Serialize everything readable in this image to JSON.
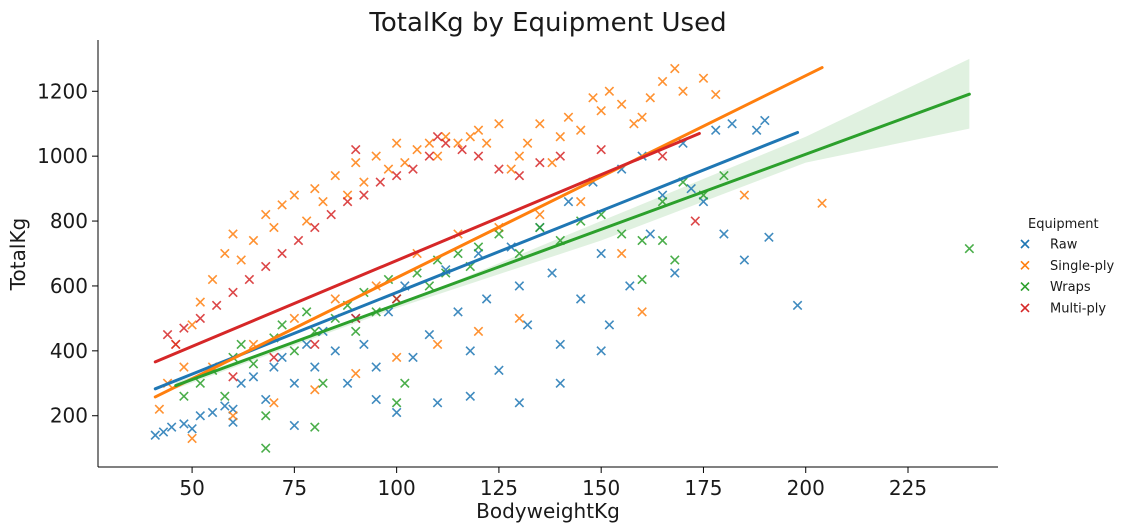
{
  "chart_data": {
    "type": "scatter",
    "title": "TotalKg by Equipment Used",
    "xlabel": "BodyweightKg",
    "ylabel": "TotalKg",
    "xlim": [
      27,
      247
    ],
    "ylim": [
      42,
      1358
    ],
    "x_ticks": [
      50,
      75,
      100,
      125,
      150,
      175,
      200,
      225
    ],
    "y_ticks": [
      200,
      400,
      600,
      800,
      1000,
      1200
    ],
    "grid": false,
    "legend": {
      "title": "Equipment",
      "placement": "right"
    },
    "series": [
      {
        "name": "Raw",
        "color": "#1f77b4",
        "marker": "x",
        "trend": {
          "x": [
            41,
            198
          ],
          "y": [
            283,
            1073
          ]
        },
        "points": [
          [
            41,
            140
          ],
          [
            43,
            150
          ],
          [
            45,
            165
          ],
          [
            48,
            175
          ],
          [
            50,
            160
          ],
          [
            52,
            200
          ],
          [
            55,
            210
          ],
          [
            58,
            230
          ],
          [
            60,
            180
          ],
          [
            62,
            300
          ],
          [
            65,
            320
          ],
          [
            68,
            250
          ],
          [
            70,
            350
          ],
          [
            72,
            380
          ],
          [
            75,
            300
          ],
          [
            78,
            420
          ],
          [
            80,
            350
          ],
          [
            82,
            460
          ],
          [
            85,
            400
          ],
          [
            88,
            300
          ],
          [
            90,
            500
          ],
          [
            92,
            420
          ],
          [
            95,
            250
          ],
          [
            98,
            520
          ],
          [
            100,
            210
          ],
          [
            102,
            600
          ],
          [
            104,
            380
          ],
          [
            108,
            450
          ],
          [
            110,
            240
          ],
          [
            112,
            650
          ],
          [
            115,
            520
          ],
          [
            118,
            400
          ],
          [
            120,
            700
          ],
          [
            122,
            560
          ],
          [
            125,
            340
          ],
          [
            128,
            720
          ],
          [
            130,
            600
          ],
          [
            132,
            480
          ],
          [
            135,
            780
          ],
          [
            138,
            640
          ],
          [
            140,
            420
          ],
          [
            142,
            860
          ],
          [
            145,
            560
          ],
          [
            148,
            920
          ],
          [
            150,
            700
          ],
          [
            152,
            480
          ],
          [
            155,
            960
          ],
          [
            157,
            600
          ],
          [
            160,
            1000
          ],
          [
            162,
            760
          ],
          [
            165,
            880
          ],
          [
            168,
            640
          ],
          [
            170,
            1040
          ],
          [
            172,
            900
          ],
          [
            175,
            860
          ],
          [
            178,
            1080
          ],
          [
            180,
            760
          ],
          [
            182,
            1100
          ],
          [
            185,
            680
          ],
          [
            188,
            1080
          ],
          [
            190,
            1110
          ],
          [
            191,
            750
          ],
          [
            198,
            540
          ],
          [
            130,
            240
          ],
          [
            140,
            300
          ],
          [
            150,
            400
          ],
          [
            60,
            220
          ],
          [
            75,
            170
          ],
          [
            95,
            350
          ],
          [
            118,
            260
          ]
        ]
      },
      {
        "name": "Single-ply",
        "color": "#ff7f0e",
        "marker": "x",
        "trend": {
          "x": [
            41,
            204
          ],
          "y": [
            258,
            1273
          ]
        },
        "points": [
          [
            42,
            220
          ],
          [
            44,
            300
          ],
          [
            46,
            420
          ],
          [
            48,
            350
          ],
          [
            50,
            480
          ],
          [
            52,
            550
          ],
          [
            55,
            620
          ],
          [
            58,
            700
          ],
          [
            60,
            760
          ],
          [
            62,
            680
          ],
          [
            65,
            740
          ],
          [
            68,
            820
          ],
          [
            70,
            780
          ],
          [
            72,
            850
          ],
          [
            75,
            880
          ],
          [
            78,
            800
          ],
          [
            80,
            900
          ],
          [
            82,
            860
          ],
          [
            85,
            940
          ],
          [
            88,
            880
          ],
          [
            90,
            980
          ],
          [
            92,
            920
          ],
          [
            95,
            1000
          ],
          [
            98,
            960
          ],
          [
            100,
            1040
          ],
          [
            102,
            980
          ],
          [
            105,
            1020
          ],
          [
            108,
            1040
          ],
          [
            110,
            1000
          ],
          [
            112,
            1060
          ],
          [
            115,
            1040
          ],
          [
            118,
            1060
          ],
          [
            120,
            1080
          ],
          [
            122,
            1040
          ],
          [
            125,
            1100
          ],
          [
            128,
            960
          ],
          [
            130,
            1000
          ],
          [
            132,
            1040
          ],
          [
            135,
            1100
          ],
          [
            138,
            980
          ],
          [
            140,
            1060
          ],
          [
            142,
            1120
          ],
          [
            145,
            1080
          ],
          [
            148,
            1180
          ],
          [
            150,
            1140
          ],
          [
            152,
            1200
          ],
          [
            155,
            1160
          ],
          [
            158,
            1100
          ],
          [
            160,
            1120
          ],
          [
            162,
            1180
          ],
          [
            165,
            1230
          ],
          [
            168,
            1270
          ],
          [
            170,
            1200
          ],
          [
            175,
            1240
          ],
          [
            178,
            1190
          ],
          [
            185,
            880
          ],
          [
            204,
            855
          ],
          [
            55,
            350
          ],
          [
            65,
            420
          ],
          [
            75,
            500
          ],
          [
            85,
            560
          ],
          [
            95,
            600
          ],
          [
            105,
            700
          ],
          [
            115,
            760
          ],
          [
            125,
            780
          ],
          [
            135,
            820
          ],
          [
            145,
            860
          ],
          [
            155,
            700
          ],
          [
            160,
            520
          ],
          [
            50,
            130
          ],
          [
            60,
            200
          ],
          [
            70,
            240
          ],
          [
            80,
            280
          ],
          [
            90,
            330
          ],
          [
            100,
            380
          ],
          [
            110,
            420
          ],
          [
            120,
            460
          ],
          [
            130,
            500
          ]
        ]
      },
      {
        "name": "Wraps",
        "color": "#2ca02c",
        "marker": "x",
        "trend": {
          "x": [
            46,
            240
          ],
          "y": [
            293,
            1191
          ]
        },
        "band_upper": [
          [
            46,
            303
          ],
          [
            100,
            540
          ],
          [
            150,
            800
          ],
          [
            200,
            1060
          ],
          [
            240,
            1300
          ]
        ],
        "band_lower": [
          [
            46,
            283
          ],
          [
            100,
            532
          ],
          [
            150,
            740
          ],
          [
            200,
            980
          ],
          [
            240,
            1085
          ]
        ],
        "points": [
          [
            48,
            260
          ],
          [
            52,
            300
          ],
          [
            55,
            340
          ],
          [
            58,
            260
          ],
          [
            60,
            380
          ],
          [
            62,
            420
          ],
          [
            65,
            360
          ],
          [
            68,
            200
          ],
          [
            70,
            440
          ],
          [
            72,
            480
          ],
          [
            75,
            400
          ],
          [
            78,
            520
          ],
          [
            80,
            460
          ],
          [
            82,
            300
          ],
          [
            85,
            500
          ],
          [
            88,
            540
          ],
          [
            90,
            460
          ],
          [
            92,
            580
          ],
          [
            95,
            520
          ],
          [
            98,
            620
          ],
          [
            100,
            560
          ],
          [
            102,
            300
          ],
          [
            105,
            640
          ],
          [
            108,
            600
          ],
          [
            110,
            680
          ],
          [
            112,
            640
          ],
          [
            115,
            700
          ],
          [
            118,
            660
          ],
          [
            120,
            720
          ],
          [
            125,
            760
          ],
          [
            130,
            700
          ],
          [
            135,
            780
          ],
          [
            140,
            740
          ],
          [
            145,
            800
          ],
          [
            150,
            820
          ],
          [
            155,
            760
          ],
          [
            160,
            740
          ],
          [
            165,
            860
          ],
          [
            168,
            680
          ],
          [
            170,
            920
          ],
          [
            175,
            880
          ],
          [
            180,
            940
          ],
          [
            240,
            715
          ],
          [
            68,
            100
          ],
          [
            80,
            165
          ],
          [
            100,
            240
          ],
          [
            160,
            620
          ],
          [
            165,
            740
          ]
        ]
      },
      {
        "name": "Multi-ply",
        "color": "#d62728",
        "marker": "x",
        "trend": {
          "x": [
            41,
            174
          ],
          "y": [
            366,
            1070
          ]
        },
        "points": [
          [
            44,
            450
          ],
          [
            46,
            420
          ],
          [
            48,
            470
          ],
          [
            52,
            500
          ],
          [
            56,
            540
          ],
          [
            60,
            580
          ],
          [
            64,
            620
          ],
          [
            68,
            660
          ],
          [
            72,
            700
          ],
          [
            76,
            740
          ],
          [
            80,
            780
          ],
          [
            84,
            820
          ],
          [
            88,
            860
          ],
          [
            90,
            1020
          ],
          [
            92,
            880
          ],
          [
            96,
            920
          ],
          [
            100,
            940
          ],
          [
            104,
            960
          ],
          [
            108,
            1000
          ],
          [
            110,
            1060
          ],
          [
            112,
            1040
          ],
          [
            116,
            1020
          ],
          [
            120,
            1000
          ],
          [
            125,
            960
          ],
          [
            130,
            940
          ],
          [
            135,
            980
          ],
          [
            140,
            1000
          ],
          [
            150,
            1020
          ],
          [
            165,
            1000
          ],
          [
            173,
            800
          ],
          [
            60,
            320
          ],
          [
            70,
            380
          ],
          [
            80,
            420
          ],
          [
            90,
            500
          ],
          [
            100,
            560
          ]
        ]
      }
    ]
  }
}
